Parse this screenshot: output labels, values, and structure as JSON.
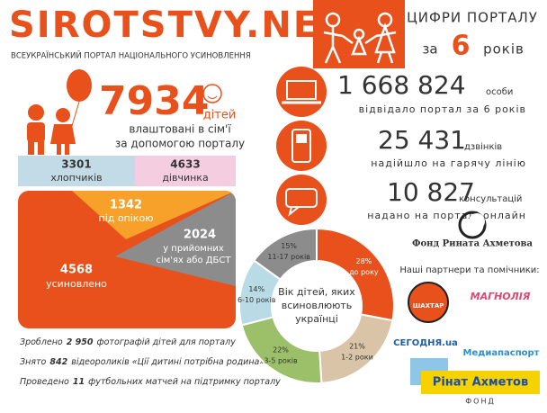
{
  "header": {
    "logo": "SIROTSTVY.NET",
    "subtitle": "ВСЕУКРАЇНСЬКИЙ ПОРТАЛ НАЦІОНАЛЬНОГО УСИНОВЛЕННЯ",
    "badge_title": "ЦИФРИ ПОРТАЛУ",
    "badge_prefix": "за",
    "badge_number": "6",
    "badge_suffix": "років"
  },
  "placed": {
    "number": "7934",
    "unit": "дітей",
    "line1": "влаштовані в сім'ї",
    "line2": "за допомогою порталу"
  },
  "gender": {
    "boys": {
      "number": "3301",
      "label": "хлопчиків"
    },
    "girls": {
      "number": "4633",
      "label": "дівчинка"
    }
  },
  "forms": {
    "guardianship": {
      "number": "1342",
      "label": "під опікою"
    },
    "foster": {
      "number": "2024",
      "line1": "у прийомних",
      "line2": "сім'ях або ДБСТ"
    },
    "adopted": {
      "number": "4568",
      "label": "усиновлено"
    }
  },
  "facts": [
    {
      "prefix": "Зроблено",
      "number": "2 950",
      "suffix": "фотографій дітей для порталу"
    },
    {
      "prefix": "Знято",
      "number": "842",
      "suffix": "відеороликів «Ції дитині потрібна родина»"
    },
    {
      "prefix": "Проведено",
      "number": "11",
      "suffix": "футбольних матчей на підтримку порталу"
    }
  ],
  "stats": [
    {
      "number": "1 668 824",
      "unit": "особи",
      "text": "відвідало портал за 6 років"
    },
    {
      "number": "25 431",
      "unit": "дзвінків",
      "text": "надійшло на гарячу лінію"
    },
    {
      "number": "10 827",
      "unit": "консультацій",
      "text": "надано на порталі онлайн"
    }
  ],
  "donut": {
    "center": [
      "Вік дітей, яких",
      "всиновлюють",
      "українці"
    ],
    "segments": [
      {
        "value": 28,
        "label": "28%",
        "name": "до року",
        "color": "#e8511c"
      },
      {
        "value": 21,
        "label": "21%",
        "name": "1-2 роки",
        "color": "#d9c4a8"
      },
      {
        "value": 22,
        "label": "22%",
        "name": "3-5 років",
        "color": "#9cc06a"
      },
      {
        "value": 14,
        "label": "14%",
        "name": "6-10 років",
        "color": "#b8dbe6"
      },
      {
        "value": 15,
        "label": "15%",
        "name": "11-17 років",
        "color": "#8c8c8c"
      }
    ]
  },
  "partners": {
    "foundation": "Фонд Рината Ахметова",
    "heading": "Наші партнери та помічники:",
    "logos": [
      "ШАХТАР",
      "МАГНОЛІЯ",
      "СЕГОДНЯ.ua",
      "Медиапаспорт",
      "Рінат Ахметов",
      "ФОНД"
    ]
  }
}
